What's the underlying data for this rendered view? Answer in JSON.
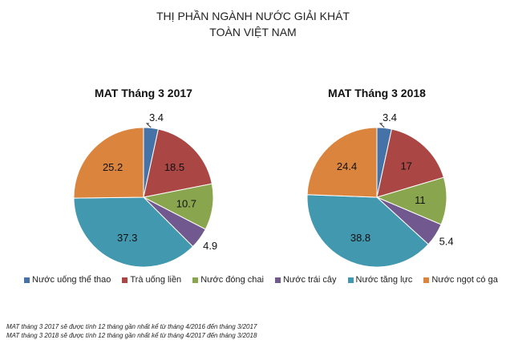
{
  "chart_data": {
    "type": "pie",
    "title": [
      "THỊ PHẦN NGÀNH NƯỚC GIẢI KHÁT",
      "TOÀN VIỆT NAM"
    ],
    "legend": {
      "placement": "bottom",
      "entries": [
        "Nước uống thể thao",
        "Trà uống liền",
        "Nước đóng chai",
        "Nước trái cây",
        "Nước tăng lực",
        "Nước ngọt có ga"
      ]
    },
    "colors": [
      "#4572a7",
      "#aa4643",
      "#89a54e",
      "#71588f",
      "#4198af",
      "#db843d"
    ],
    "charts": [
      {
        "title": "MAT Tháng 3 2017",
        "values": [
          3.4,
          18.5,
          10.7,
          4.9,
          37.3,
          25.2
        ]
      },
      {
        "title": "MAT Tháng 3 2018",
        "values": [
          3.4,
          17,
          11,
          5.4,
          38.8,
          24.4
        ]
      }
    ]
  },
  "notes": [
    "MAT tháng 3 2017 sẽ được tính 12 tháng  gần nhất kể  từ tháng 4/2016 đến tháng 3/2017",
    "MAT tháng 3 2018 sẽ được tính 12 tháng gần nhất kể từ tháng 4/2017 đến tháng 3/2018"
  ]
}
